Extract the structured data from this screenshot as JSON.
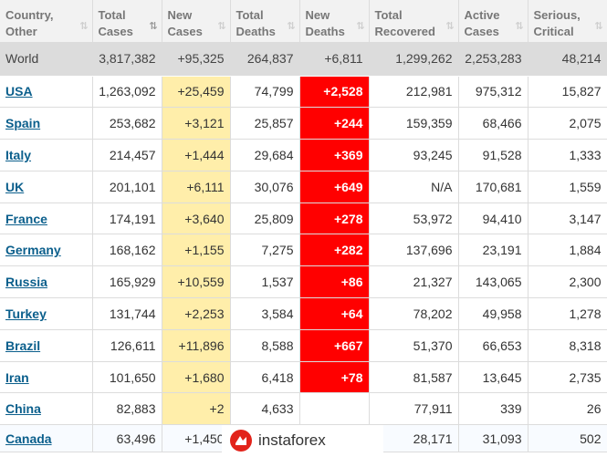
{
  "headers": [
    {
      "line1": "Country,",
      "line2": "Other",
      "sort": "⇅"
    },
    {
      "line1": "Total",
      "line2": "Cases",
      "sort": "⇅"
    },
    {
      "line1": "New",
      "line2": "Cases",
      "sort": "⇅"
    },
    {
      "line1": "Total",
      "line2": "Deaths",
      "sort": "⇅"
    },
    {
      "line1": "New",
      "line2": "Deaths",
      "sort": "⇅"
    },
    {
      "line1": "Total",
      "line2": "Recovered",
      "sort": "⇅"
    },
    {
      "line1": "Active",
      "line2": "Cases",
      "sort": "⇅"
    },
    {
      "line1": "Serious,",
      "line2": "Critical",
      "sort": "⇅"
    }
  ],
  "world": [
    "World",
    "3,817,382",
    "+95,325",
    "264,837",
    "+6,811",
    "1,299,262",
    "2,253,283",
    "48,214"
  ],
  "rows": [
    [
      "USA",
      "1,263,092",
      "+25,459",
      "74,799",
      "+2,528",
      "212,981",
      "975,312",
      "15,827"
    ],
    [
      "Spain",
      "253,682",
      "+3,121",
      "25,857",
      "+244",
      "159,359",
      "68,466",
      "2,075"
    ],
    [
      "Italy",
      "214,457",
      "+1,444",
      "29,684",
      "+369",
      "93,245",
      "91,528",
      "1,333"
    ],
    [
      "UK",
      "201,101",
      "+6,111",
      "30,076",
      "+649",
      "N/A",
      "170,681",
      "1,559"
    ],
    [
      "France",
      "174,191",
      "+3,640",
      "25,809",
      "+278",
      "53,972",
      "94,410",
      "3,147"
    ],
    [
      "Germany",
      "168,162",
      "+1,155",
      "7,275",
      "+282",
      "137,696",
      "23,191",
      "1,884"
    ],
    [
      "Russia",
      "165,929",
      "+10,559",
      "1,537",
      "+86",
      "21,327",
      "143,065",
      "2,300"
    ],
    [
      "Turkey",
      "131,744",
      "+2,253",
      "3,584",
      "+64",
      "78,202",
      "49,958",
      "1,278"
    ],
    [
      "Brazil",
      "126,611",
      "+11,896",
      "8,588",
      "+667",
      "51,370",
      "66,653",
      "8,318"
    ],
    [
      "Iran",
      "101,650",
      "+1,680",
      "6,418",
      "+78",
      "81,587",
      "13,645",
      "2,735"
    ],
    [
      "China",
      "82,883",
      "+2",
      "4,633",
      "",
      "77,911",
      "339",
      "26"
    ],
    [
      "Canada",
      "63,496",
      "+1,450",
      "",
      "",
      "28,171",
      "31,093",
      "502"
    ]
  ],
  "watermark": {
    "text": "instaforex"
  },
  "colors": {
    "new_cases_bg": "#ffeeaa",
    "new_deaths_bg": "#ff0000",
    "header_bg": "#f2f2f2",
    "world_bg": "#dcdcdc",
    "link": "#0b5f8c"
  }
}
